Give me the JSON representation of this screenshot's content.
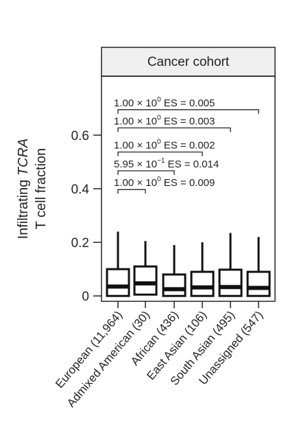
{
  "chart_data": {
    "type": "box",
    "panel_title": "Cancer cohort",
    "ylabel_prefix": "Infiltrating ",
    "ylabel_italic": "TCRA",
    "ylabel_line2": "T cell fraction",
    "yticks": [
      0,
      0.2,
      0.4,
      0.6
    ],
    "ytick_labels": [
      "0",
      "0.2",
      "0.4",
      "0.6"
    ],
    "ylim": [
      -0.02,
      0.82
    ],
    "categories": [
      "European (11,964)",
      "Admixed American (30)",
      "African (436)",
      "East Asian (106)",
      "South Asian (495)",
      "Unassigned (547)"
    ],
    "boxes": [
      {
        "whisker_low": 0.0,
        "q1": 0.0,
        "median": 0.035,
        "q3": 0.1,
        "whisker_high": 0.24
      },
      {
        "whisker_low": 0.0,
        "q1": 0.005,
        "median": 0.047,
        "q3": 0.11,
        "whisker_high": 0.205
      },
      {
        "whisker_low": 0.0,
        "q1": 0.0,
        "median": 0.025,
        "q3": 0.08,
        "whisker_high": 0.19
      },
      {
        "whisker_low": 0.0,
        "q1": 0.0,
        "median": 0.032,
        "q3": 0.09,
        "whisker_high": 0.2
      },
      {
        "whisker_low": 0.0,
        "q1": 0.0,
        "median": 0.033,
        "q3": 0.098,
        "whisker_high": 0.235
      },
      {
        "whisker_low": 0.0,
        "q1": 0.0,
        "median": 0.03,
        "q3": 0.09,
        "whisker_high": 0.22
      }
    ],
    "comparisons": [
      {
        "from": 0,
        "to": 5,
        "y": 0.695,
        "p_mantissa": "1.00",
        "p_exponent": "0",
        "es": "0.005"
      },
      {
        "from": 0,
        "to": 4,
        "y": 0.627,
        "p_mantissa": "1.00",
        "p_exponent": "0",
        "es": "0.003"
      },
      {
        "from": 0,
        "to": 3,
        "y": 0.537,
        "p_mantissa": "1.00",
        "p_exponent": "0",
        "es": "0.002"
      },
      {
        "from": 0,
        "to": 2,
        "y": 0.467,
        "p_mantissa": "5.95",
        "p_exponent": "−1",
        "es": "0.014"
      },
      {
        "from": 0,
        "to": 1,
        "y": 0.397,
        "p_mantissa": "1.00",
        "p_exponent": "0",
        "es": "0.009"
      }
    ]
  }
}
